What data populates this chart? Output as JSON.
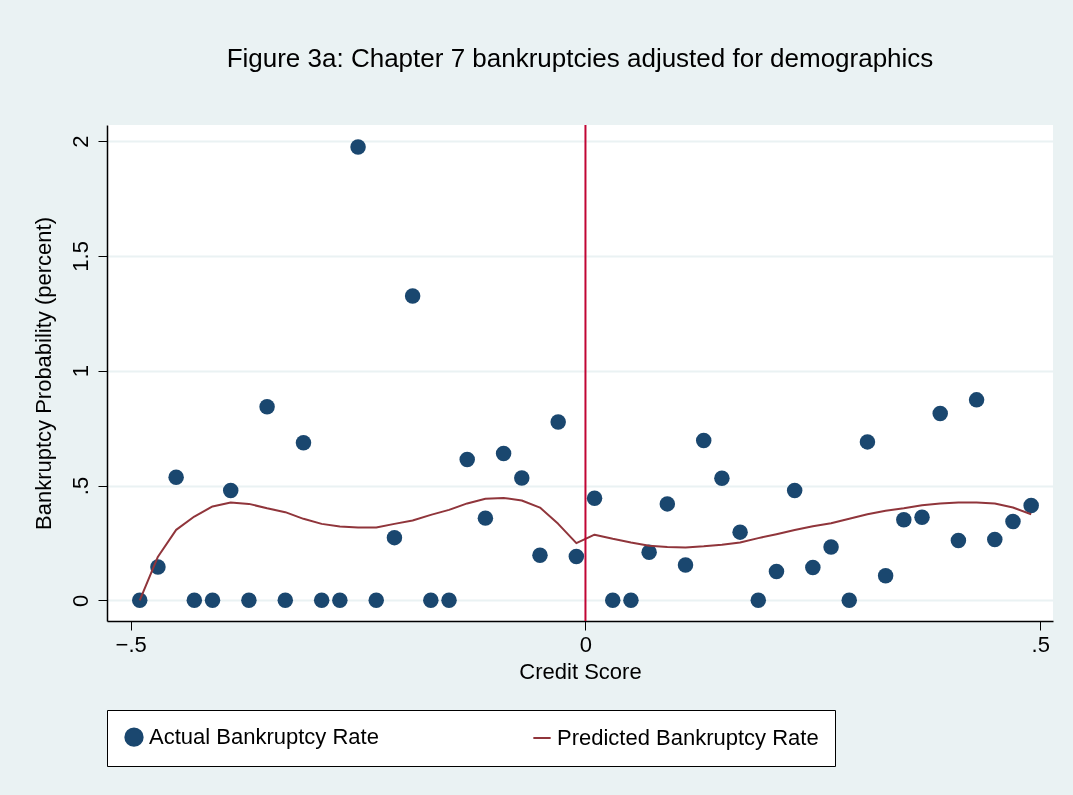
{
  "chart_data": {
    "type": "scatter",
    "title": "Figure 3a: Chapter 7 bankruptcies adjusted for demographics",
    "xlabel": "Credit Score",
    "ylabel": "Bankruptcy Probability (percent)",
    "x": [
      -0.49,
      -0.47,
      -0.45,
      -0.43,
      -0.41,
      -0.39,
      -0.37,
      -0.35,
      -0.33,
      -0.31,
      -0.29,
      -0.27,
      -0.25,
      -0.23,
      -0.21,
      -0.19,
      -0.17,
      -0.15,
      -0.13,
      -0.11,
      -0.09,
      -0.07,
      -0.05,
      -0.03,
      -0.01,
      0.01,
      0.03,
      0.05,
      0.07,
      0.09,
      0.11,
      0.13,
      0.15,
      0.17,
      0.19,
      0.21,
      0.23,
      0.25,
      0.27,
      0.29,
      0.31,
      0.33,
      0.35,
      0.37,
      0.39,
      0.41,
      0.43,
      0.45,
      0.47,
      0.49
    ],
    "series": [
      {
        "name": "Actual Bankruptcy Rate",
        "marker": "circle",
        "color": "#1a476f",
        "values": [
          0,
          0.145,
          0.536,
          0,
          0,
          0.478,
          0,
          0.843,
          0,
          0.686,
          0,
          0,
          1.974,
          0,
          0.273,
          1.325,
          0,
          0,
          0.613,
          0.358,
          0.639,
          0.533,
          0.196,
          0.777,
          0.191,
          0.445,
          0,
          0,
          0.209,
          0.42,
          0.154,
          0.696,
          0.532,
          0.297,
          0,
          0.126,
          0.478,
          0.143,
          0.232,
          0,
          0.69,
          0.107,
          0.351,
          0.362,
          0.814,
          0.261,
          0.873,
          0.265,
          0.343,
          0.413
        ]
      },
      {
        "name": "Predicted Bankruptcy Rate",
        "type": "line",
        "marker": "none",
        "line_style": "solid",
        "color": "#90353b",
        "values": [
          0,
          0.19,
          0.307,
          0.365,
          0.409,
          0.426,
          0.42,
          0.401,
          0.384,
          0.355,
          0.333,
          0.322,
          0.317,
          0.317,
          0.333,
          0.348,
          0.372,
          0.394,
          0.422,
          0.442,
          0.446,
          0.435,
          0.404,
          0.333,
          0.249,
          0.286,
          0.268,
          0.252,
          0.238,
          0.232,
          0.23,
          0.235,
          0.242,
          0.252,
          0.271,
          0.288,
          0.306,
          0.323,
          0.336,
          0.355,
          0.375,
          0.39,
          0.401,
          0.414,
          0.422,
          0.426,
          0.426,
          0.422,
          0.404,
          0.375
        ]
      }
    ],
    "xlim": [
      -0.526,
      0.514
    ],
    "xticks": [
      {
        "value": -0.5,
        "label": "−.5"
      },
      0,
      {
        "value": 0.5,
        "label": ".5"
      }
    ],
    "ylim": [
      -0.09,
      2.07
    ],
    "yticks": [
      0,
      {
        "value": 0.5,
        "label": ".5"
      },
      1,
      1.5,
      2
    ],
    "ref_lines": [
      {
        "axis": "x",
        "value": 0,
        "color": "#c10534"
      }
    ],
    "grid": "y",
    "legend": "bottom"
  }
}
